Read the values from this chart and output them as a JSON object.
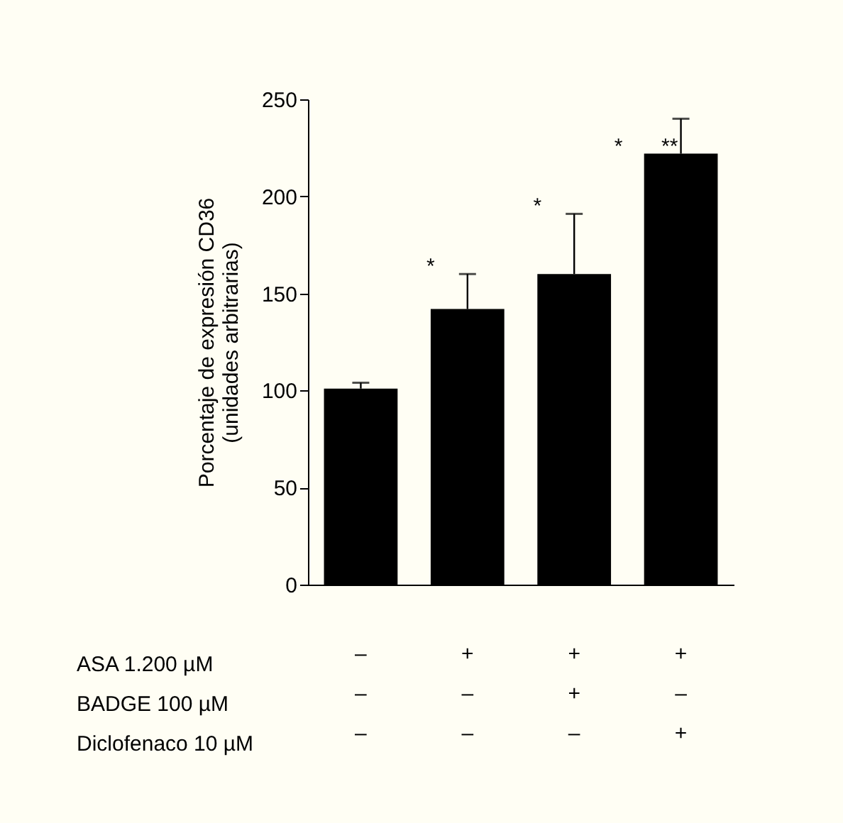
{
  "chart_data": {
    "type": "bar",
    "ylabel": "Porcentaje de expresión CD36\n(unidades arbitrarias)",
    "categories": [
      "–\n–\n–",
      "+\n–\n–",
      "+\n+\n–",
      "+\n–\n+"
    ],
    "values": [
      101,
      142,
      160,
      222
    ],
    "errors": [
      [
        101,
        104
      ],
      [
        142,
        160
      ],
      [
        160,
        191
      ],
      [
        222,
        240
      ]
    ],
    "color": "#000000",
    "ylim": [
      0,
      250
    ],
    "yticks": [
      0,
      50,
      100,
      150,
      200,
      250
    ],
    "grid": false,
    "annotations": [
      "ASA 1.200 µM",
      "BADGE 100 µM",
      "Diclofenaco 10 µM",
      {
        "text": "*",
        "x": "+\n–\n–",
        "y": 164
      },
      {
        "text": "*",
        "x": "+\n+\n–",
        "y": 195
      },
      {
        "text": "*",
        "x": "+\n–\n+",
        "y": 226
      },
      {
        "text": "**",
        "x": "+\n–\n+",
        "y": 226
      }
    ]
  }
}
